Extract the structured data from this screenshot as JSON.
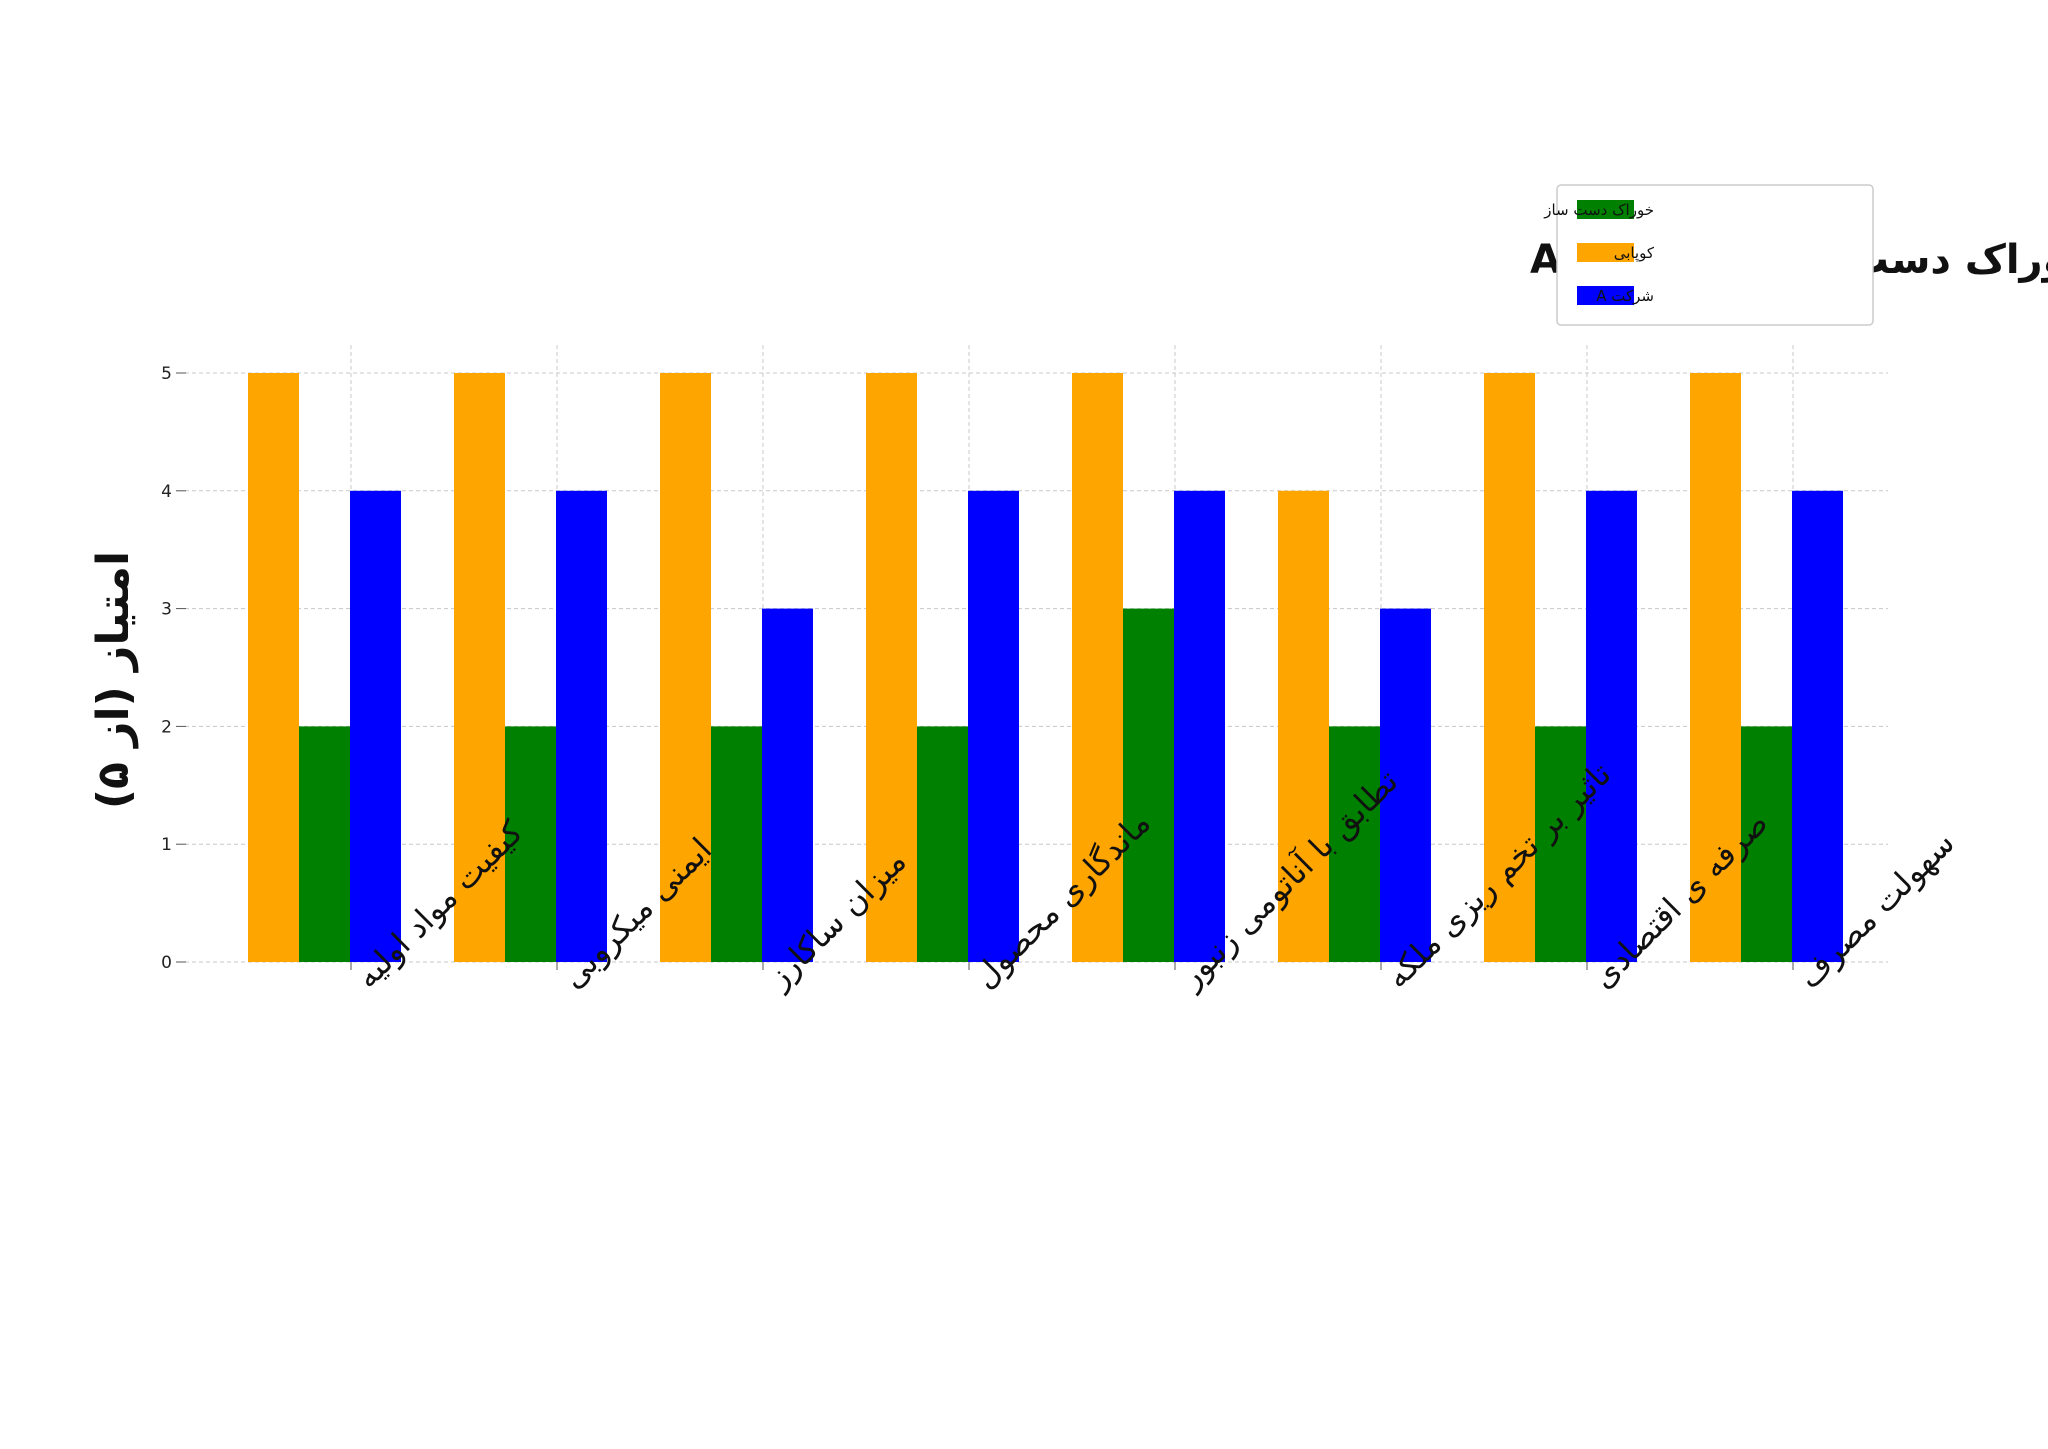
{
  "chart_data": {
    "type": "bar",
    "title": "مقایسه شاخص های کلیدی بین کوپابی ، خوراک دست ساز و شرکت A",
    "ylabel": "امتیاز (از ۵)",
    "xlabel": "",
    "ylim": [
      0,
      5
    ],
    "yticks": [
      0,
      1,
      2,
      3,
      4,
      5
    ],
    "grid": true,
    "legend_position": "top-right",
    "categories": [
      "کیفیت مواد اولیه",
      "ایمنی میکروبی",
      "میزان ساکارز",
      "ماندگاری محصول",
      "تطابق با آناتومی زنبور",
      "تاثیر بر تخم ریزی ملکه",
      "صرفه ی اقتصادی",
      "سهولت مصرف"
    ],
    "series": [
      {
        "name": "کوپابی",
        "color": "#ffa500",
        "values": [
          5,
          5,
          5,
          5,
          5,
          4,
          5,
          5
        ]
      },
      {
        "name": "خوراک دست ساز",
        "color": "#008000",
        "values": [
          2,
          2,
          2,
          2,
          3,
          2,
          2,
          2
        ]
      },
      {
        "name": "شرکت A",
        "color": "#0000ff",
        "values": [
          4,
          4,
          3,
          4,
          4,
          3,
          4,
          4
        ]
      }
    ],
    "legend_order": [
      "خوراک دست ساز",
      "کوپابی",
      "شرکت A"
    ]
  }
}
